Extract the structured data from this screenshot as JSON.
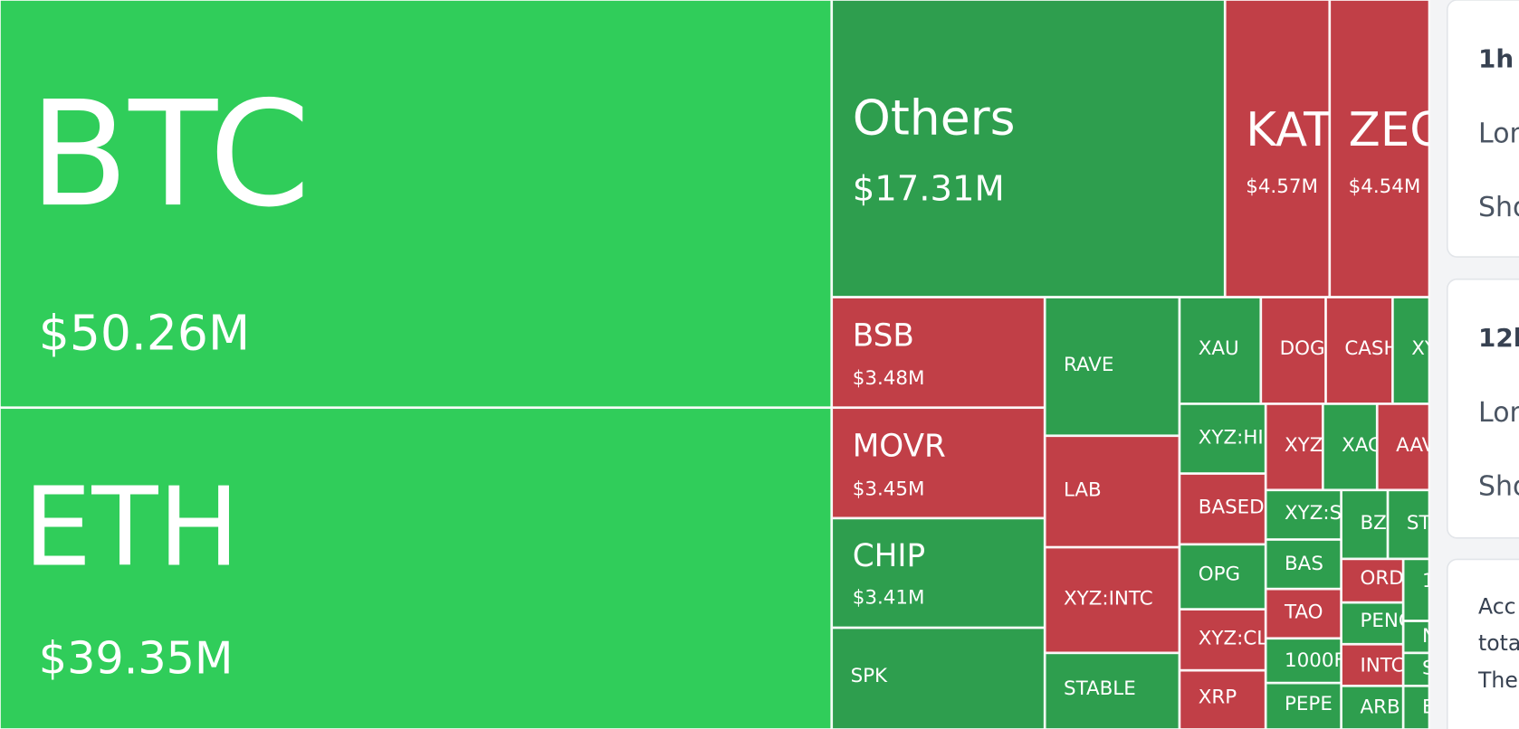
{
  "treemap": {
    "tiles": [
      {
        "label": "BTC",
        "value": "$50.26M",
        "color": "#30cd5a"
      },
      {
        "label": "ETH",
        "value": "$39.35M",
        "color": "#30cd5a"
      },
      {
        "label": "Others",
        "value": "$17.31M",
        "color": "#2e9e4e"
      },
      {
        "label": "KAT",
        "value": "$4.57M",
        "color": "#c13f47"
      },
      {
        "label": "ZEC",
        "value": "$4.54M",
        "color": "#c13f47"
      },
      {
        "label": "BSB",
        "value": "$3.48M",
        "color": "#c13f47"
      },
      {
        "label": "MOVR",
        "value": "$3.45M",
        "color": "#c13f47"
      },
      {
        "label": "CHIP",
        "value": "$3.41M",
        "color": "#2e9e4e"
      },
      {
        "label": "SPK",
        "color": "#2e9e4e"
      },
      {
        "label": "RAVE",
        "color": "#2e9e4e"
      },
      {
        "label": "LAB",
        "color": "#c13f47"
      },
      {
        "label": "XYZ:INTC",
        "color": "#c13f47"
      },
      {
        "label": "STABLE",
        "color": "#2e9e4e"
      },
      {
        "label": "XAU",
        "color": "#2e9e4e"
      },
      {
        "label": "DOG",
        "color": "#c13f47"
      },
      {
        "label": "CASH",
        "color": "#c13f47"
      },
      {
        "label": "XY",
        "color": "#2e9e4e"
      },
      {
        "label": "XYZ:HI",
        "color": "#2e9e4e"
      },
      {
        "label": "XYZ",
        "color": "#c13f47"
      },
      {
        "label": "XAG",
        "color": "#2e9e4e"
      },
      {
        "label": "AAV",
        "color": "#c13f47"
      },
      {
        "label": "BASED",
        "color": "#c13f47"
      },
      {
        "label": "XYZ:S",
        "color": "#2e9e4e"
      },
      {
        "label": "BZ",
        "color": "#2e9e4e"
      },
      {
        "label": "ST",
        "color": "#2e9e4e"
      },
      {
        "label": "OPG",
        "color": "#2e9e4e"
      },
      {
        "label": "BAS",
        "color": "#2e9e4e"
      },
      {
        "label": "ORD",
        "color": "#c13f47"
      },
      {
        "label": "1",
        "color": "#2e9e4e"
      },
      {
        "label": "XYZ:CL",
        "color": "#c13f47"
      },
      {
        "label": "TAO",
        "color": "#c13f47"
      },
      {
        "label": "PENG",
        "color": "#2e9e4e"
      },
      {
        "label": "N",
        "color": "#2e9e4e"
      },
      {
        "label": "1000F",
        "color": "#2e9e4e"
      },
      {
        "label": "INTC",
        "color": "#c13f47"
      },
      {
        "label": "S",
        "color": "#2e9e4e"
      },
      {
        "label": "XRP",
        "color": "#c13f47"
      },
      {
        "label": "PEPE",
        "color": "#2e9e4e"
      },
      {
        "label": "ARB",
        "color": "#2e9e4e"
      },
      {
        "label": "E",
        "color": "#2e9e4e"
      }
    ]
  },
  "panel": {
    "cards": [
      {
        "title": "1h",
        "rows": [
          "Lon",
          "Sho"
        ]
      },
      {
        "title": "12h",
        "rows": [
          "Lon",
          "Sho"
        ]
      },
      {
        "lines": [
          "Acc",
          "tota",
          "The"
        ]
      }
    ]
  }
}
